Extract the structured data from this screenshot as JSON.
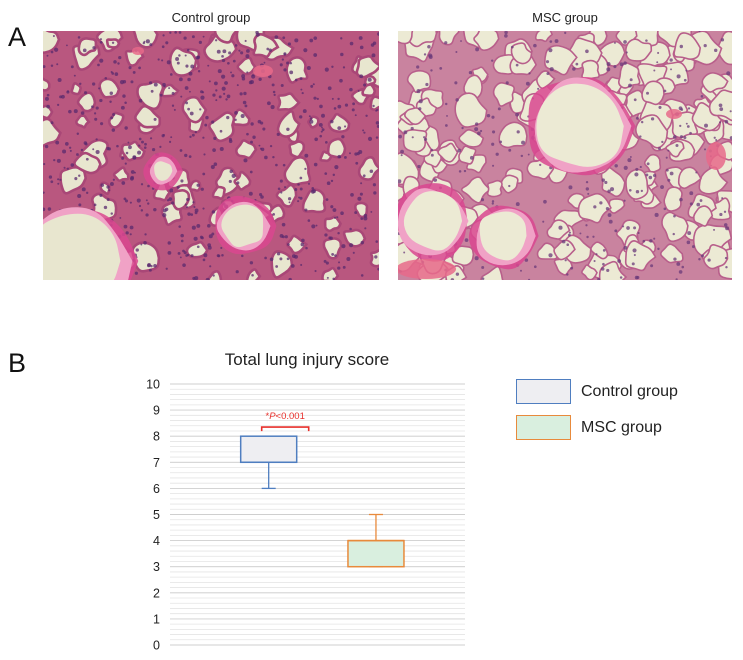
{
  "panels": {
    "A": {
      "letter": "A",
      "images": [
        {
          "title": "Control group",
          "description": "H&E lung histology, dense thickened alveolar septa"
        },
        {
          "title": "MSC group",
          "description": "H&E lung histology, thin alveolar septa"
        }
      ]
    },
    "B": {
      "letter": "B"
    }
  },
  "chart_data": {
    "type": "box",
    "title": "Total lung injury score",
    "ylim": [
      0,
      10
    ],
    "yticks": [
      0,
      1,
      2,
      3,
      4,
      5,
      6,
      7,
      8,
      9,
      10
    ],
    "grid": true,
    "legend_position": "right",
    "series": [
      {
        "name": "Control group",
        "min": 6,
        "q1": 7,
        "median": 7,
        "q3": 8,
        "max": 8,
        "color": "#4f7ec0",
        "fill": "#eeeef2"
      },
      {
        "name": "MSC group",
        "min": 3,
        "q1": 3,
        "median": 4,
        "q3": 4,
        "max": 5,
        "color": "#e88a3c",
        "fill": "#d9efdf"
      }
    ],
    "annotation": {
      "text": "P<0.001",
      "prefix": "*",
      "color": "#e8302c"
    }
  }
}
